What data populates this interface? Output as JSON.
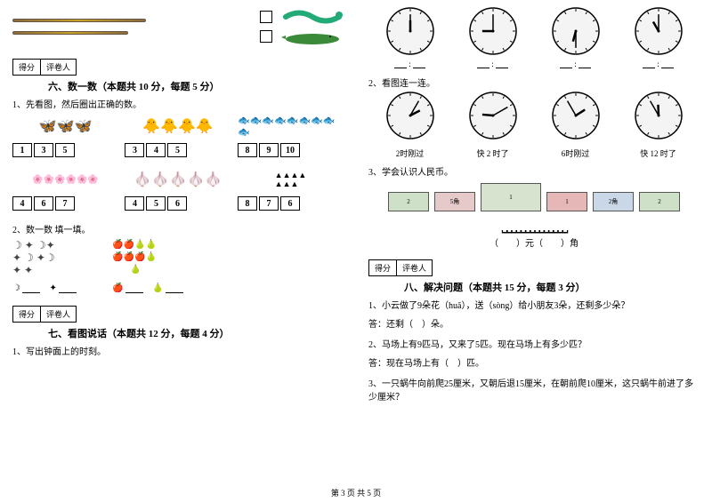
{
  "footer": "第 3 页 共 5 页",
  "scorebox": {
    "score": "得分",
    "grader": "评卷人"
  },
  "section6": {
    "title": "六、数一数（本题共 10 分，每题 5 分）",
    "q1": "1、先看图，然后圈出正确的数。",
    "q2": "2、数一数 填一填。",
    "row1": {
      "a": [
        "1",
        "3",
        "5"
      ],
      "b": [
        "3",
        "4",
        "5"
      ],
      "c": [
        "8",
        "9",
        "10"
      ]
    },
    "row2": {
      "a": [
        "4",
        "6",
        "7"
      ],
      "b": [
        "4",
        "5",
        "6"
      ],
      "c": [
        "8",
        "7",
        "6"
      ]
    }
  },
  "section7": {
    "title": "七、看图说话（本题共 12 分，每题 4 分）",
    "q1": "1、写出钟面上的时刻。",
    "q2": "2、看图连一连。",
    "q3": "3、学会认识人民币。",
    "clocks_top": [
      {
        "h": 12,
        "m": 0
      },
      {
        "h": 9,
        "m": 0
      },
      {
        "h": 6,
        "m": 30
      },
      {
        "h": 11,
        "m": 0
      }
    ],
    "clocks_mid": [
      {
        "h": 2,
        "m": 5
      },
      {
        "h": 9,
        "m": 10
      },
      {
        "h": 1,
        "m": 55
      },
      {
        "h": 11,
        "m": 55
      }
    ],
    "labels": [
      "2时刚过",
      "快 2 时了",
      "6时刚过",
      "快 12 时了"
    ],
    "blank": ":",
    "money_ans": "（　　）元（　　）角",
    "bills": [
      {
        "w": 46,
        "h": 22,
        "bg": "#cfe0c9",
        "txt": "2"
      },
      {
        "w": 46,
        "h": 22,
        "bg": "#e6caca",
        "txt": "5角"
      },
      {
        "w": 68,
        "h": 32,
        "bg": "#d7e2cf",
        "txt": "1"
      },
      {
        "w": 46,
        "h": 22,
        "bg": "#e6b7b7",
        "txt": "1"
      },
      {
        "w": 46,
        "h": 22,
        "bg": "#c9d7e6",
        "txt": "2角"
      },
      {
        "w": 46,
        "h": 22,
        "bg": "#cfe0c9",
        "txt": "2"
      }
    ]
  },
  "section8": {
    "title": "八、解决问题（本题共 15 分，每题 3 分）",
    "q1": "1、小云做了9朵花（huā），送（sòng）给小朋友3朵，还剩多少朵？",
    "a1": "答：还剩（　）朵。",
    "q2": "2、马场上有9匹马，又来了5匹。现在马场上有多少匹？",
    "a2": "答：现在马场上有（　）匹。",
    "q3": "3、一只蜗牛向前爬25厘米，又朝后退15厘米，在朝前爬10厘米，这只蜗牛前进了多少厘米？"
  }
}
